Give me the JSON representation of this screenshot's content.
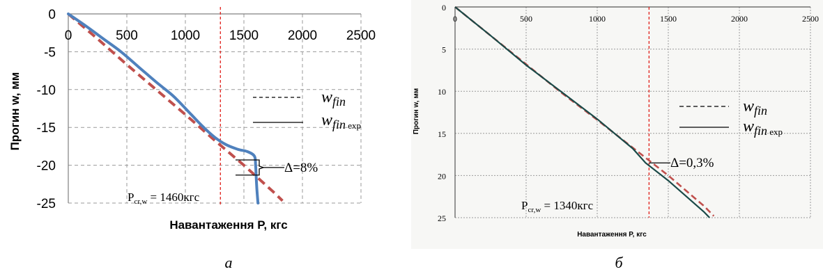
{
  "chart_data": [
    {
      "type": "line",
      "panel_label": "а",
      "xlabel": "Навантаження P, кгс",
      "ylabel": "Прогин w, мм",
      "xlim": [
        0,
        2500
      ],
      "ylim": [
        -25,
        0
      ],
      "x_ticks": [
        "0",
        "500",
        "1000",
        "1500",
        "2000",
        "2500"
      ],
      "y_ticks": [
        "0",
        "-5",
        "-10",
        "-15",
        "-20",
        "-25"
      ],
      "grid": true,
      "series": [
        {
          "name": "wfin",
          "style": "dashed",
          "color": "#c0504d",
          "x": [
            0,
            250,
            500,
            750,
            1000,
            1250,
            1500,
            1750,
            1830
          ],
          "y": [
            0,
            -3.3,
            -6.7,
            -10.0,
            -13.3,
            -16.7,
            -20.0,
            -23.5,
            -24.7
          ]
        },
        {
          "name": "wfin exp",
          "style": "solid",
          "color": "#4f81bd",
          "x": [
            0,
            150,
            300,
            450,
            600,
            750,
            900,
            1050,
            1150,
            1250,
            1350,
            1450,
            1530,
            1590,
            1600,
            1605,
            1610,
            1620
          ],
          "y": [
            0,
            -1.6,
            -3.3,
            -5.0,
            -7.0,
            -9.0,
            -10.9,
            -13.3,
            -14.9,
            -16.3,
            -17.3,
            -17.9,
            -18.2,
            -18.8,
            -20.0,
            -21.5,
            -23.0,
            -25.0
          ]
        }
      ],
      "legend": {
        "items": [
          {
            "prefix": "w",
            "sub": "fin",
            "exp": "",
            "style": "dashed"
          },
          {
            "prefix": "w",
            "sub": "fin",
            "exp": " exp",
            "style": "solid"
          }
        ],
        "position": "right"
      },
      "critical_load": {
        "x": 1460,
        "label_prefix": "P",
        "label_sub": "cr,w",
        "label_value": " = 1460кгс"
      },
      "delta_label": "Δ=8%",
      "delta_range": [
        -19.3,
        -21.3
      ]
    },
    {
      "type": "line",
      "panel_label": "б",
      "xlabel": "Навантаження P, кгс",
      "ylabel": "Прогин w, мм",
      "xlim": [
        0,
        2500
      ],
      "ylim": [
        0,
        25
      ],
      "y_inverted": true,
      "x_ticks": [
        "0",
        "500",
        "1000",
        "1500",
        "2000",
        "2500"
      ],
      "y_ticks": [
        "0",
        "5",
        "10",
        "15",
        "20",
        "25"
      ],
      "grid": true,
      "series": [
        {
          "name": "wfin",
          "style": "dashed",
          "color": "#c0504d",
          "x": [
            0,
            250,
            500,
            750,
            1000,
            1250,
            1500,
            1750,
            1820
          ],
          "y": [
            0,
            3.4,
            6.8,
            10.2,
            13.4,
            16.7,
            20.0,
            23.6,
            24.8
          ]
        },
        {
          "name": "wfin exp",
          "style": "solid",
          "color": "#1a4a48",
          "x": [
            0,
            250,
            500,
            750,
            1000,
            1250,
            1340,
            1500,
            1750,
            1790
          ],
          "y": [
            0,
            3.4,
            6.9,
            10.1,
            13.3,
            16.8,
            18.5,
            20.6,
            24.3,
            25.0
          ]
        }
      ],
      "legend": {
        "items": [
          {
            "prefix": "w",
            "sub": "fin",
            "exp": "",
            "style": "dashed"
          },
          {
            "prefix": "w",
            "sub": "fin",
            "exp": " exp",
            "style": "solid"
          }
        ],
        "position": "right"
      },
      "critical_load": {
        "x": 1340,
        "label_prefix": "P",
        "label_sub": "cr,w",
        "label_value": " = 1340кгс"
      },
      "delta_label": "Δ=0,3%"
    }
  ]
}
